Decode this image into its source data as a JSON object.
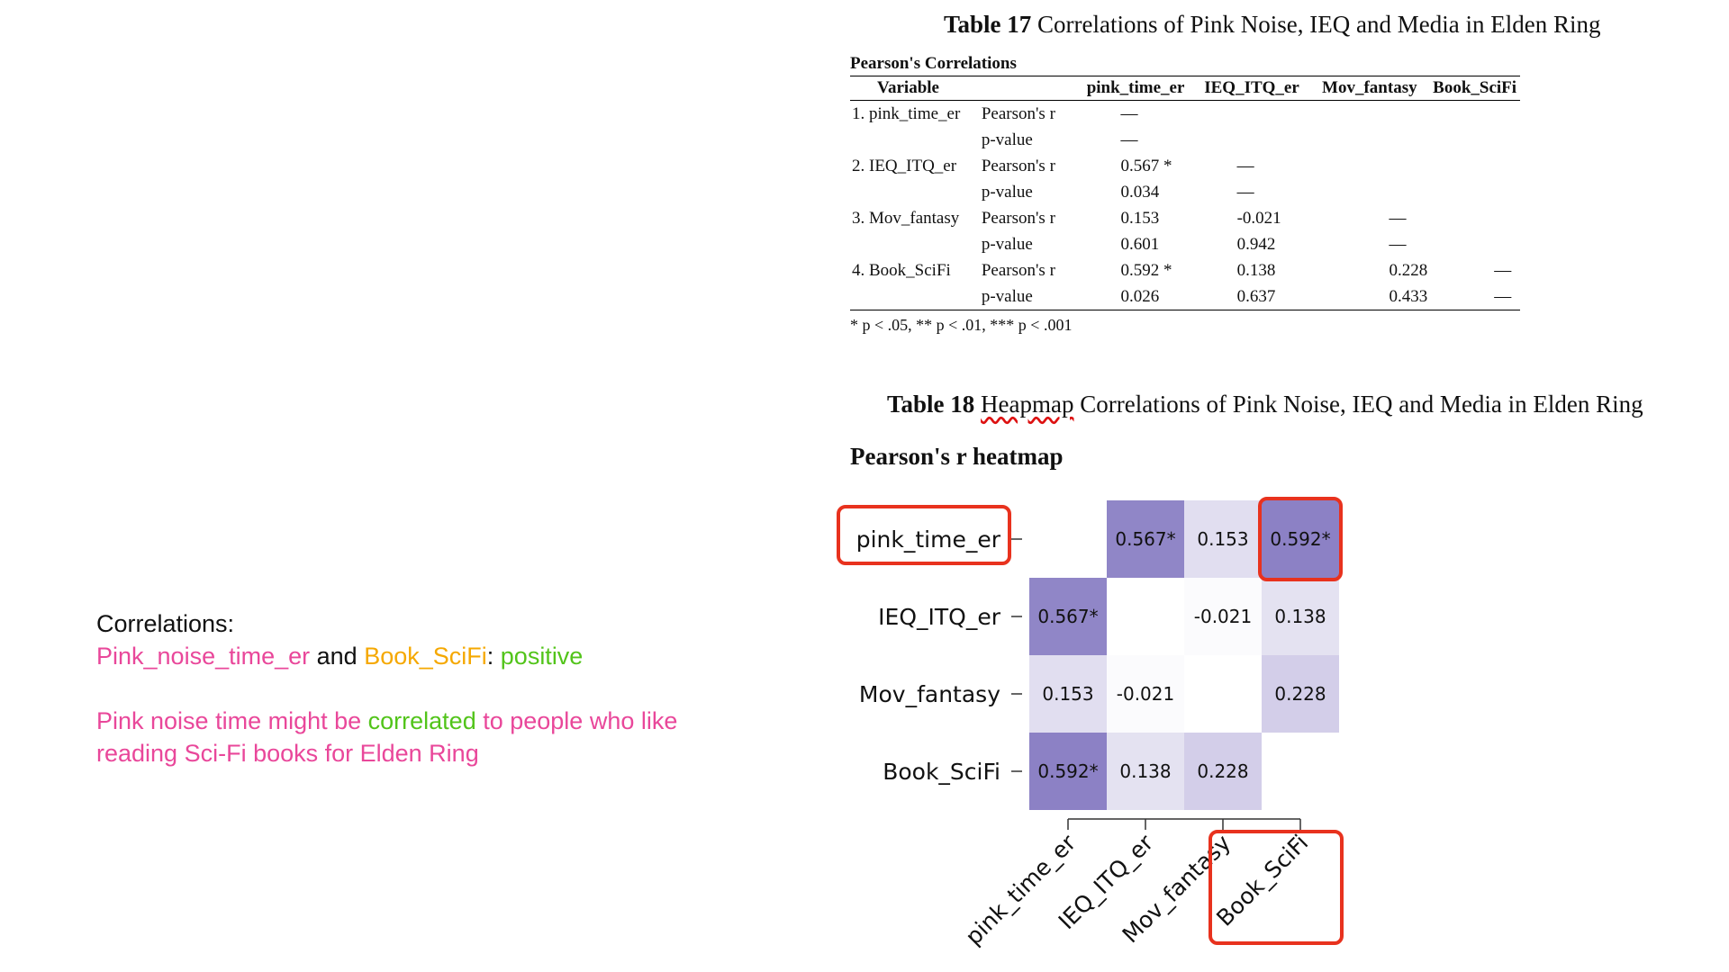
{
  "notes": {
    "line1": "Correlations:",
    "pair_a": "Pink_noise_time_er",
    "and": " and ",
    "pair_b": "Book_SciFi",
    "colon": ": ",
    "verdict": "positive",
    "line3_a": "Pink noise time might be ",
    "line3_b": "correlated",
    "line3_c": " to people who like",
    "line4": "reading Sci-Fi books for Elden Ring",
    "colors": {
      "pink": "#e9479a",
      "orange": "#f5a800",
      "green": "#52c41a",
      "black": "#111111"
    }
  },
  "table17": {
    "label": "Table 17",
    "caption": " Correlations of Pink Noise, IEQ and Media in Elden Ring",
    "section_title": "Pearson's Correlations",
    "columns": [
      "Variable",
      "",
      "pink_time_er",
      "IEQ_ITQ_er",
      "Mov_fantasy",
      "Book_SciFi"
    ],
    "rows": [
      [
        "1. pink_time_er",
        "Pearson's r",
        "—",
        "",
        "",
        ""
      ],
      [
        "",
        "p-value",
        "—",
        "",
        "",
        ""
      ],
      [
        "2. IEQ_ITQ_er",
        "Pearson's r",
        "0.567 *",
        "—",
        "",
        ""
      ],
      [
        "",
        "p-value",
        "0.034",
        "—",
        "",
        ""
      ],
      [
        "3. Mov_fantasy",
        "Pearson's r",
        "0.153",
        "-0.021",
        "—",
        ""
      ],
      [
        "",
        "p-value",
        "0.601",
        "0.942",
        "—",
        ""
      ],
      [
        "4. Book_SciFi",
        "Pearson's r",
        "0.592 *",
        "0.138",
        "0.228",
        "—"
      ],
      [
        "",
        "p-value",
        "0.026",
        "0.637",
        "0.433",
        "—"
      ]
    ],
    "footnote": "* p < .05, ** p < .01, *** p < .001"
  },
  "table18": {
    "label": "Table 18",
    "caption_word": "Heapmap",
    "caption_rest": " Correlations of Pink Noise, IEQ and Media in Elden Ring"
  },
  "heatmap": {
    "title": "Pearson's r heatmap",
    "highlight_color": "#e8321e"
  },
  "chart_data": {
    "type": "heatmap",
    "title": "Pearson's r heatmap",
    "variables": [
      "pink_time_er",
      "IEQ_ITQ_er",
      "Mov_fantasy",
      "Book_SciFi"
    ],
    "matrix": [
      [
        null,
        0.567,
        0.153,
        0.592
      ],
      [
        0.567,
        null,
        -0.021,
        0.138
      ],
      [
        0.153,
        -0.021,
        null,
        0.228
      ],
      [
        0.592,
        0.138,
        0.228,
        null
      ]
    ],
    "labels": [
      [
        "",
        "0.567*",
        "0.153",
        "0.592*"
      ],
      [
        "0.567*",
        "",
        "-0.021",
        "0.138"
      ],
      [
        "0.153",
        "-0.021",
        "",
        "0.228"
      ],
      [
        "0.592*",
        "0.138",
        "0.228",
        ""
      ]
    ],
    "highlighted": [
      "pink_time_er",
      "Book_SciFi"
    ],
    "colors": {
      "low": "#ffffff",
      "high": "#8a7fc4"
    }
  }
}
